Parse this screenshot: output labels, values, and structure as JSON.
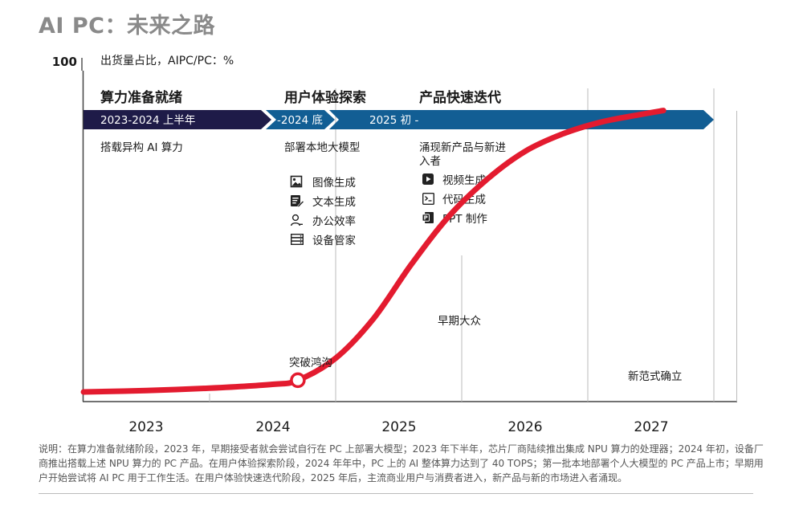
{
  "title": "AI PC：未来之路",
  "chart_data": {
    "type": "line",
    "title": "AI PC：未来之路",
    "ylabel": "出货量占比，AIPC/PC：%",
    "y_max_label": "100",
    "ylim": [
      0,
      100
    ],
    "x_ticks": [
      "2023",
      "2024",
      "2025",
      "2026",
      "2027"
    ],
    "series": [
      {
        "x": [
          2023.0,
          2023.5,
          2024.0,
          2024.5,
          2024.7,
          2025.0,
          2025.3,
          2025.6,
          2025.9,
          2026.2,
          2026.5,
          2026.8,
          2027.1,
          2027.4,
          2027.6
        ],
        "values": [
          0,
          0.5,
          1.3,
          2.6,
          4.0,
          11.5,
          25.0,
          43.5,
          60.0,
          72.5,
          82.0,
          88.0,
          92.0,
          94.5,
          96.0
        ]
      }
    ],
    "color": "#e31b2f",
    "grid": "vertical",
    "phases": [
      {
        "heading": "算力准备就绪",
        "banner": "2023-2024 上半年",
        "description": "搭载异构 AI 算力"
      },
      {
        "heading": "用户体验探索",
        "banner": "-2024 底",
        "description": "部署本地大模型"
      },
      {
        "heading": "产品快速迭代",
        "banner": "2025 初 -",
        "description": "涌现新产品与新进入者"
      }
    ],
    "phase2_features": [
      {
        "icon": "image-icon",
        "label": "图像生成"
      },
      {
        "icon": "text-edit-icon",
        "label": "文本生成"
      },
      {
        "icon": "user-icon",
        "label": "办公效率"
      },
      {
        "icon": "device-icon",
        "label": "设备管家"
      }
    ],
    "phase3_features": [
      {
        "icon": "video-icon",
        "label": "视频生成"
      },
      {
        "icon": "terminal-icon",
        "label": "代码生成"
      },
      {
        "icon": "ppt-icon",
        "label": "PPT 制作"
      }
    ],
    "annotations": [
      {
        "x": 2024.7,
        "text": "突破鸿沟"
      },
      {
        "x": 2025.5,
        "text": "早期大众"
      },
      {
        "x": 2026.5,
        "text": "新范式确立"
      }
    ],
    "colors": {
      "line": "#e31b2f",
      "banner_dark": "#1e1b48",
      "banner_blue": "#125e94"
    }
  },
  "notes": "说明：在算力准备就绪阶段，2023 年，早期接受者就会尝试自行在 PC 上部署大模型；2023 年下半年，芯片厂商陆续推出集成 NPU 算力的处理器；2024 年初，设备厂商推出搭载上述 NPU 算力的 PC 产品。在用户体验探索阶段，2024 年年中，PC 上的 AI 整体算力达到了 40 TOPS；第一批本地部署个人大模型的 PC 产品上市；早期用户开始尝试将 AI PC 用于工作生活。在用户体验快速迭代阶段，2025 年后，主流商业用户与消费者进入，新产品与新的市场进入者涌现。"
}
